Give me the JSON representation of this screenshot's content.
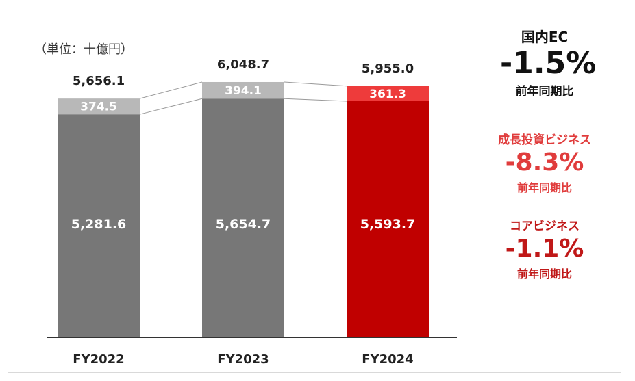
{
  "chart_data": {
    "type": "bar",
    "unit_label": "（単位：十億円）",
    "categories": [
      "FY2022",
      "FY2023",
      "FY2024"
    ],
    "stacked": true,
    "series": [
      {
        "name": "コアビジネス",
        "values": [
          5281.6,
          5654.7,
          5593.7
        ],
        "colors": [
          "#777777",
          "#777777",
          "#c00000"
        ]
      },
      {
        "name": "成長投資ビジネス",
        "values": [
          374.5,
          394.1,
          361.3
        ],
        "colors": [
          "#b8b8b8",
          "#b8b8b8",
          "#ee3b3b"
        ]
      }
    ],
    "totals": [
      5656.1,
      6048.7,
      5955.0
    ],
    "value_labels": {
      "core": [
        "5,281.6",
        "5,654.7",
        "5,593.7"
      ],
      "growth": [
        "374.5",
        "394.1",
        "361.3"
      ],
      "totals": [
        "5,656.1",
        "6,048.7",
        "5,955.0"
      ]
    },
    "annotations": [
      {
        "title": "国内EC",
        "value": "-1.5%",
        "sub": "前年同期比",
        "color": "#111111"
      },
      {
        "title": "成長投資ビジネス",
        "value": "-8.3%",
        "sub": "前年同期比",
        "color": "#e03c3c"
      },
      {
        "title": "コアビジネス",
        "value": "-1.1%",
        "sub": "前年同期比",
        "color": "#c01818"
      }
    ]
  }
}
